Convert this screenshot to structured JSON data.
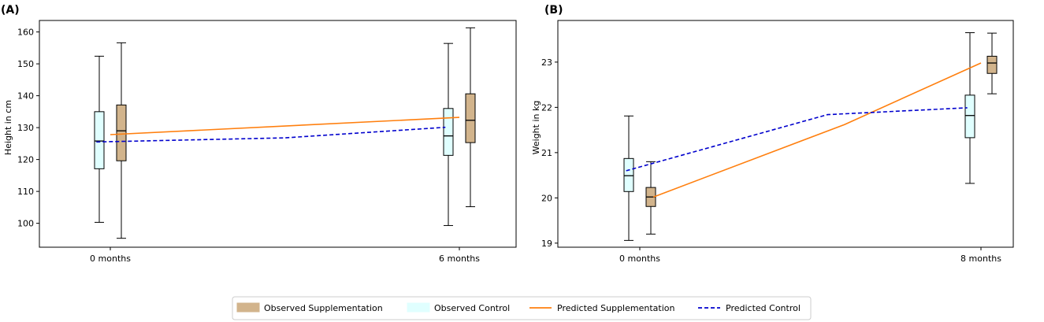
{
  "colors": {
    "supplementation_box": "#d2b48c",
    "control_box": "#e0ffff",
    "predicted_supplementation": "#ff7f0e",
    "predicted_control": "#0000cd",
    "axis": "#000000"
  },
  "legend": {
    "observed_supplementation": "Observed Supplementation",
    "observed_control": "Observed Control",
    "predicted_supplementation": "Predicted Supplementation",
    "predicted_control": "Predicted Control"
  },
  "chart_data": [
    {
      "type": "box",
      "panel_label": "(A)",
      "ylabel": "Height in cm",
      "xlabel": "",
      "ylim": [
        92.5,
        163.6
      ],
      "yticks": [
        100,
        110,
        120,
        130,
        140,
        150,
        160
      ],
      "categories": [
        "0 months",
        "6 months"
      ],
      "boxes": [
        {
          "series": "Observed Control",
          "category": "0 months",
          "whisker_low": 100.3,
          "q1": 117.1,
          "median": 125.8,
          "q3": 135.0,
          "whisker_high": 152.4
        },
        {
          "series": "Observed Supplementation",
          "category": "0 months",
          "whisker_low": 95.3,
          "q1": 119.6,
          "median": 129.0,
          "q3": 137.1,
          "whisker_high": 156.6
        },
        {
          "series": "Observed Control",
          "category": "6 months",
          "whisker_low": 99.3,
          "q1": 121.3,
          "median": 127.4,
          "q3": 136.0,
          "whisker_high": 156.4
        },
        {
          "series": "Observed Supplementation",
          "category": "6 months",
          "whisker_low": 105.2,
          "q1": 125.3,
          "median": 132.3,
          "q3": 140.6,
          "whisker_high": 161.3
        }
      ],
      "lines": [
        {
          "name": "Predicted Supplementation",
          "x": [
            0.0,
            1.0
          ],
          "y": [
            127.8,
            133.2
          ]
        },
        {
          "name": "Predicted Control",
          "x": [
            -0.04,
            0.5,
            0.96
          ],
          "y": [
            125.5,
            126.8,
            130.1
          ]
        }
      ]
    },
    {
      "type": "box",
      "panel_label": "(B)",
      "ylabel": "Weight in kg",
      "xlabel": "",
      "ylim": [
        18.91,
        23.92
      ],
      "yticks": [
        19,
        20,
        21,
        22,
        23
      ],
      "categories": [
        "0 months",
        "8 months"
      ],
      "boxes": [
        {
          "series": "Observed Control",
          "category": "0 months",
          "whisker_low": 19.06,
          "q1": 20.14,
          "median": 20.49,
          "q3": 20.87,
          "whisker_high": 21.81
        },
        {
          "series": "Observed Supplementation",
          "category": "0 months",
          "whisker_low": 19.2,
          "q1": 19.81,
          "median": 20.02,
          "q3": 20.23,
          "whisker_high": 20.8
        },
        {
          "series": "Observed Control",
          "category": "8 months",
          "whisker_low": 20.32,
          "q1": 21.33,
          "median": 21.82,
          "q3": 22.27,
          "whisker_high": 23.65
        },
        {
          "series": "Observed Supplementation",
          "category": "8 months",
          "whisker_low": 22.3,
          "q1": 22.75,
          "median": 22.98,
          "q3": 23.13,
          "whisker_high": 23.64
        }
      ],
      "lines": [
        {
          "name": "Predicted Supplementation",
          "x": [
            0.04,
            0.6,
            1.0
          ],
          "y": [
            20.02,
            21.62,
            22.98
          ]
        },
        {
          "name": "Predicted Control",
          "x": [
            -0.04,
            0.55,
            0.96
          ],
          "y": [
            20.6,
            21.84,
            21.99
          ]
        }
      ]
    }
  ]
}
